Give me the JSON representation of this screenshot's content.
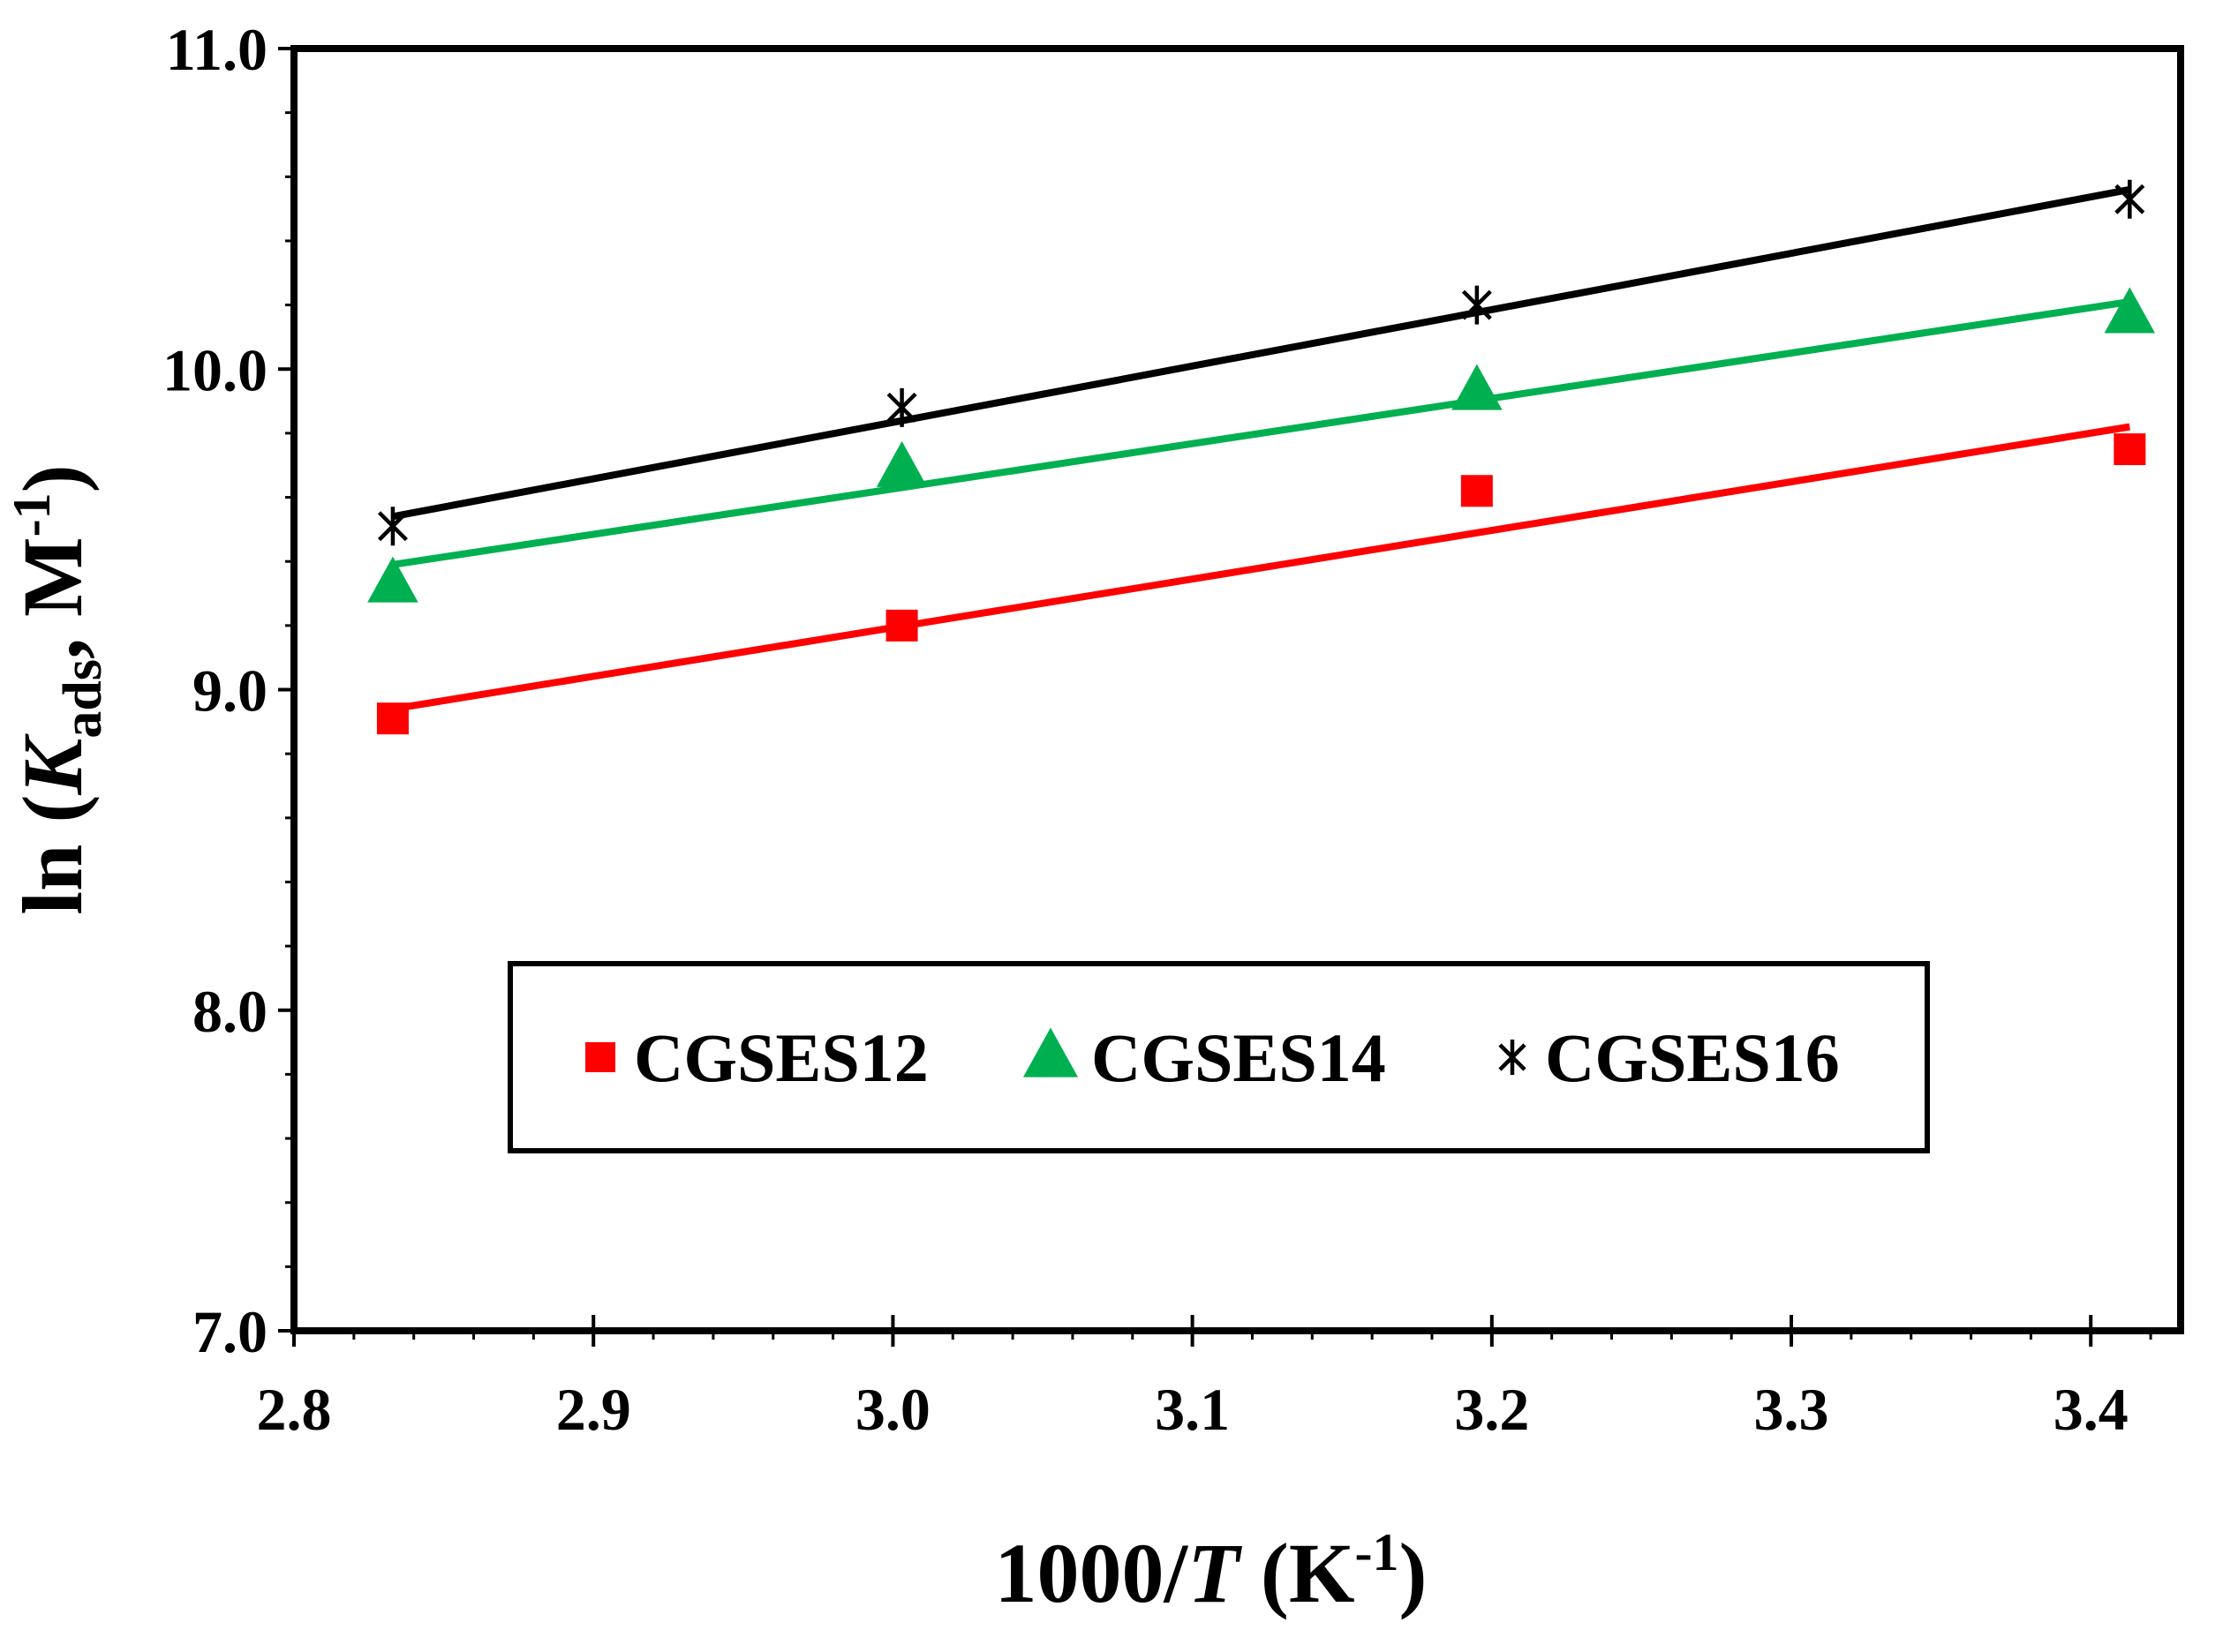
{
  "chart_data": {
    "type": "scatter",
    "title": "",
    "xlabel": {
      "main": "1000/",
      "italic": "T",
      "unit_open": " (K",
      "sup": "-1",
      "unit_close": ")"
    },
    "ylabel": {
      "main": "ln (",
      "italic": "K",
      "sub": "ads",
      "unit": ", M",
      "sup": "-1",
      "close": ")"
    },
    "xlim": [
      2.8,
      3.43
    ],
    "ylim": [
      7.0,
      11.0
    ],
    "xticks": [
      "2.8",
      "2.9",
      "3.0",
      "3.1",
      "3.2",
      "3.3",
      "3.4"
    ],
    "xtick_values": [
      2.8,
      2.9,
      3.0,
      3.1,
      3.2,
      3.3,
      3.4
    ],
    "yticks": [
      "7.0",
      "8.0",
      "9.0",
      "10.0",
      "11.0"
    ],
    "ytick_values": [
      7.0,
      8.0,
      9.0,
      10.0,
      11.0
    ],
    "x_minor_step": 0.02,
    "y_minor_step": 0.2,
    "legend_position": "center-bottom",
    "series": [
      {
        "name": "CGSES12",
        "marker": "square",
        "color": "#ff0000",
        "x": [
          2.833,
          3.003,
          3.195,
          3.413
        ],
        "y": [
          8.91,
          9.2,
          9.62,
          9.75
        ],
        "fit": {
          "x": [
            2.833,
            3.413
          ],
          "y": [
            8.94,
            9.82
          ]
        }
      },
      {
        "name": "CGSES14",
        "marker": "triangle",
        "color": "#00b050",
        "x": [
          2.833,
          3.003,
          3.195,
          3.413
        ],
        "y": [
          9.33,
          9.69,
          9.93,
          10.17
        ],
        "fit": {
          "x": [
            2.833,
            3.413
          ],
          "y": [
            9.39,
            10.21
          ]
        }
      },
      {
        "name": "CGSES16",
        "marker": "star",
        "color": "#000000",
        "x": [
          2.833,
          3.003,
          3.195,
          3.413
        ],
        "y": [
          9.51,
          9.88,
          10.2,
          10.53
        ],
        "fit": {
          "x": [
            2.833,
            3.413
          ],
          "y": [
            9.54,
            10.56
          ]
        }
      }
    ]
  }
}
